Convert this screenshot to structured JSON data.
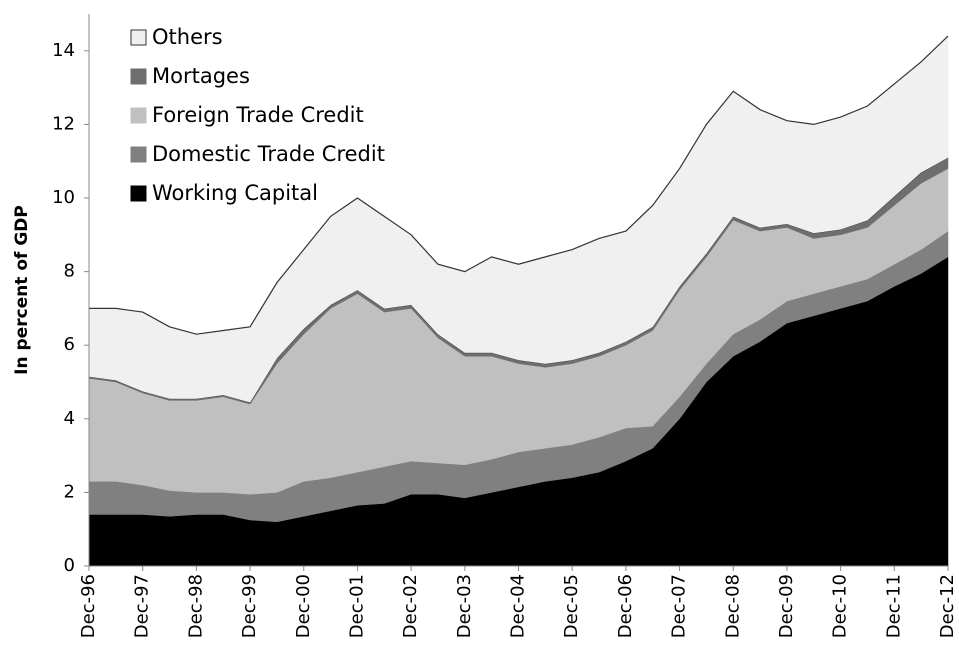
{
  "chart_data": {
    "type": "stacked-area",
    "y_label": "In percent of GDP",
    "categories": [
      "Dec-96",
      null,
      "Dec-97",
      null,
      "Dec-98",
      null,
      "Dec-99",
      null,
      "Dec-00",
      null,
      "Dec-01",
      null,
      "Dec-02",
      null,
      "Dec-03",
      null,
      "Dec-04",
      null,
      "Dec-05",
      null,
      "Dec-06",
      null,
      "Dec-07",
      null,
      "Dec-08",
      null,
      "Dec-09",
      null,
      "Dec-10",
      null,
      "Dec-11",
      null,
      "Dec-12"
    ],
    "ylim": [
      0,
      15
    ],
    "yticks": [
      0,
      2,
      4,
      6,
      8,
      10,
      12,
      14
    ],
    "legend": "top-left",
    "series": [
      {
        "name": "Working Capital",
        "color": "#000000",
        "values": [
          1.4,
          1.4,
          1.4,
          1.35,
          1.4,
          1.4,
          1.25,
          1.2,
          1.35,
          1.5,
          1.65,
          1.7,
          1.95,
          1.95,
          1.85,
          2.0,
          2.15,
          2.3,
          2.4,
          2.55,
          2.85,
          3.2,
          4.0,
          5.0,
          5.7,
          6.1,
          6.6,
          6.8,
          7.0,
          7.2,
          7.6,
          7.95,
          8.4
        ]
      },
      {
        "name": "Domestic Trade Credit",
        "color": "#808080",
        "values": [
          0.9,
          0.9,
          0.8,
          0.7,
          0.6,
          0.6,
          0.7,
          0.8,
          0.95,
          0.9,
          0.9,
          1.0,
          0.9,
          0.85,
          0.9,
          0.9,
          0.95,
          0.9,
          0.9,
          0.95,
          0.9,
          0.6,
          0.6,
          0.5,
          0.6,
          0.6,
          0.6,
          0.6,
          0.6,
          0.6,
          0.6,
          0.65,
          0.7
        ]
      },
      {
        "name": "Foreign Trade Credit",
        "color": "#c0c0c0",
        "values": [
          2.8,
          2.7,
          2.5,
          2.45,
          2.5,
          2.6,
          2.45,
          3.5,
          4.0,
          4.6,
          4.85,
          4.2,
          4.15,
          3.4,
          2.95,
          2.8,
          2.4,
          2.2,
          2.2,
          2.2,
          2.25,
          2.6,
          2.9,
          2.9,
          3.1,
          2.4,
          2.0,
          1.5,
          1.4,
          1.4,
          1.6,
          1.8,
          1.7
        ]
      },
      {
        "name": "Mortages",
        "color": "#6e6e6e",
        "values": [
          0.05,
          0.05,
          0.05,
          0.05,
          0.05,
          0.05,
          0.05,
          0.15,
          0.15,
          0.1,
          0.1,
          0.1,
          0.1,
          0.1,
          0.1,
          0.1,
          0.1,
          0.1,
          0.1,
          0.1,
          0.1,
          0.1,
          0.1,
          0.1,
          0.1,
          0.1,
          0.1,
          0.15,
          0.15,
          0.2,
          0.25,
          0.3,
          0.3
        ]
      },
      {
        "name": "Others",
        "color": "#f0f0f0",
        "values": [
          1.85,
          1.95,
          2.15,
          1.95,
          1.75,
          1.75,
          2.05,
          2.05,
          2.15,
          2.4,
          2.5,
          2.5,
          1.9,
          1.9,
          2.2,
          2.6,
          2.6,
          2.9,
          3.0,
          3.1,
          3.0,
          3.3,
          3.2,
          3.5,
          3.4,
          3.2,
          2.8,
          2.95,
          3.05,
          3.1,
          3.05,
          3.0,
          3.3
        ]
      }
    ]
  }
}
